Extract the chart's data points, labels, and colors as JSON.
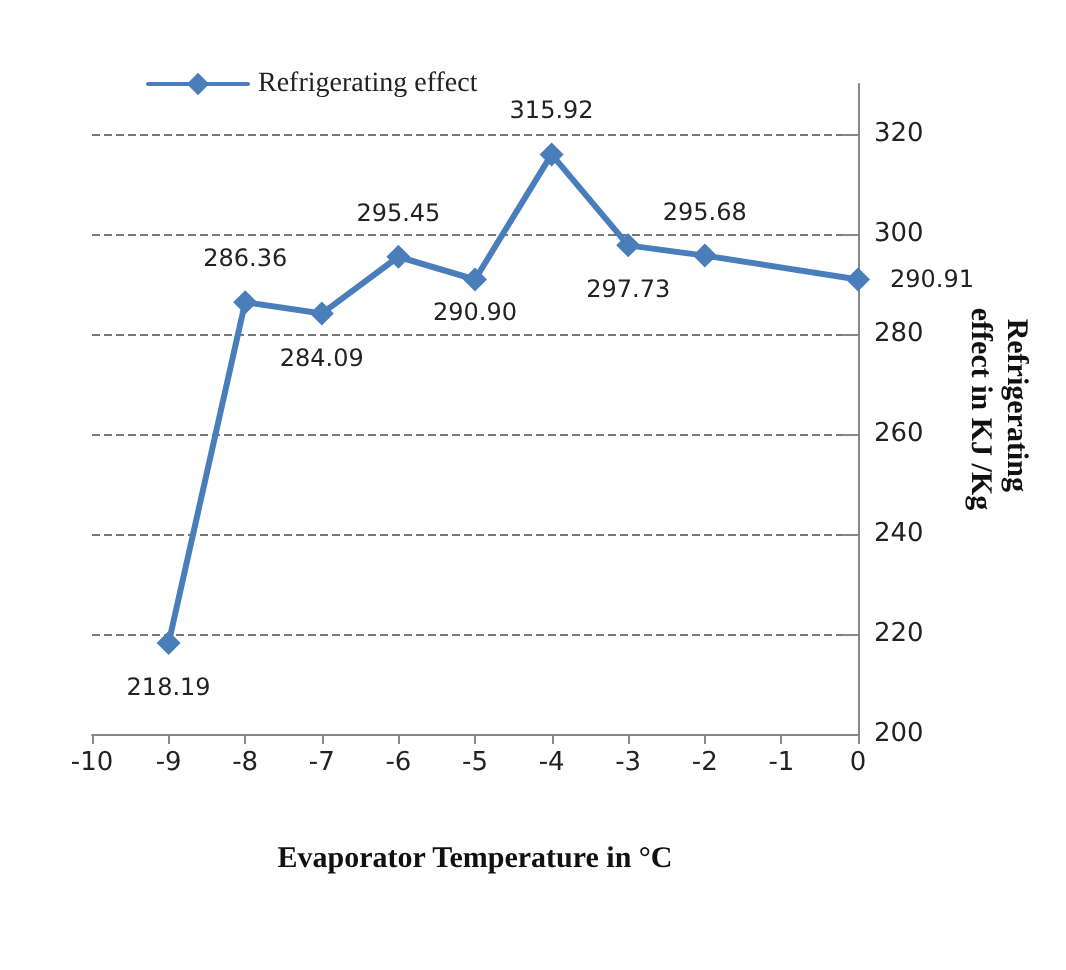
{
  "chart_data": {
    "type": "line",
    "xlabel": "Evaporator Temperature in °C",
    "ylabel": "Refrigerating effect in KJ /Kg",
    "x": [
      -9,
      -8,
      -7,
      -6,
      -5,
      -4,
      -3,
      -2,
      0
    ],
    "series": [
      {
        "name": "Refrigerating effect",
        "color": "#4a7ebb",
        "values": [
          218.19,
          286.36,
          284.09,
          295.45,
          290.9,
          315.92,
          297.73,
          295.68,
          290.91
        ],
        "value_labels": [
          "218.19",
          "286.36",
          "284.09",
          "295.45",
          "290.90",
          "315.92",
          "297.73",
          "295.68",
          "290.91"
        ]
      }
    ],
    "xlim": [
      -10,
      0
    ],
    "xticks": [
      -10,
      -9,
      -8,
      -7,
      -6,
      -5,
      -4,
      -3,
      -2,
      -1,
      0
    ],
    "ylim": [
      200,
      330
    ],
    "yticks": [
      200,
      220,
      240,
      260,
      280,
      300,
      320
    ],
    "grid": "y",
    "legend": "top left",
    "marker": "diamond",
    "line_style": "solid"
  }
}
